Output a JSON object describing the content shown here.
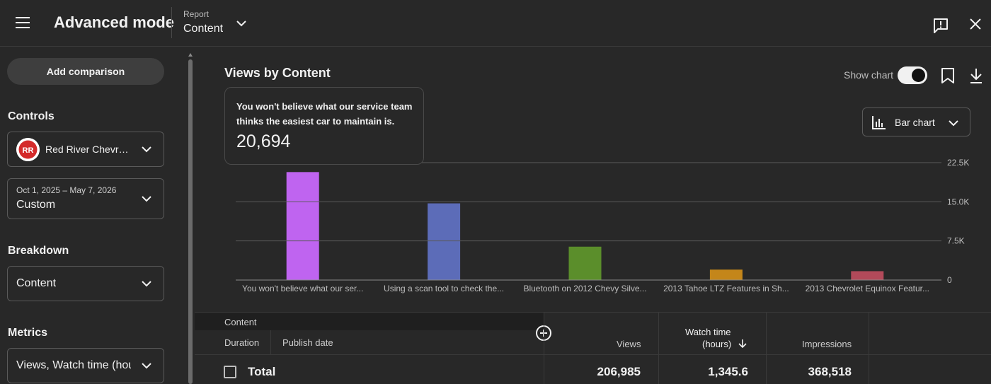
{
  "topbar": {
    "title": "Advanced mode",
    "report_label": "Report",
    "report_value": "Content"
  },
  "sidebar": {
    "add_comparison": "Add comparison",
    "controls_heading": "Controls",
    "channel": "Red River Chevrolet",
    "date_range": "Oct 1, 2025 – May 7, 2026",
    "date_mode": "Custom",
    "breakdown_heading": "Breakdown",
    "breakdown_value": "Content",
    "metrics_heading": "Metrics",
    "metrics_value": "Views, Watch time (hours), Impressions"
  },
  "chart_panel": {
    "title": "Views by Content",
    "show_chart_label": "Show chart",
    "show_chart_on": true,
    "chart_type_label": "Bar chart",
    "tooltip": {
      "title": "You won't believe what our service team thinks the easiest car to maintain is.",
      "value": "20,694"
    }
  },
  "chart_data": {
    "type": "bar",
    "categories": [
      "You won't believe what our ser...",
      "Using a scan tool to check the...",
      "Bluetooth on 2012 Chevy Silve...",
      "2013 Tahoe LTZ Features in Sh...",
      "2013 Chevrolet Equinox Featur..."
    ],
    "values": [
      20694,
      14700,
      6400,
      2000,
      1700
    ],
    "colors": [
      "#bf64f0",
      "#5c6cb8",
      "#5b8e2b",
      "#c4861a",
      "#b24a5a"
    ],
    "ylim": [
      0,
      22500
    ],
    "yticks": [
      "0",
      "7.5K",
      "15.0K",
      "22.5K"
    ],
    "ytick_values": [
      0,
      7500,
      15000,
      22500
    ],
    "grid": true,
    "title": "Views by Content"
  },
  "table": {
    "col_content": "Content",
    "col_duration": "Duration",
    "col_publish": "Publish date",
    "col_views": "Views",
    "col_watch_line1": "Watch time",
    "col_watch_line2": "(hours)",
    "col_impressions": "Impressions",
    "total_label": "Total",
    "total_views": "206,985",
    "total_watch": "1,345.6",
    "total_impressions": "368,518"
  }
}
